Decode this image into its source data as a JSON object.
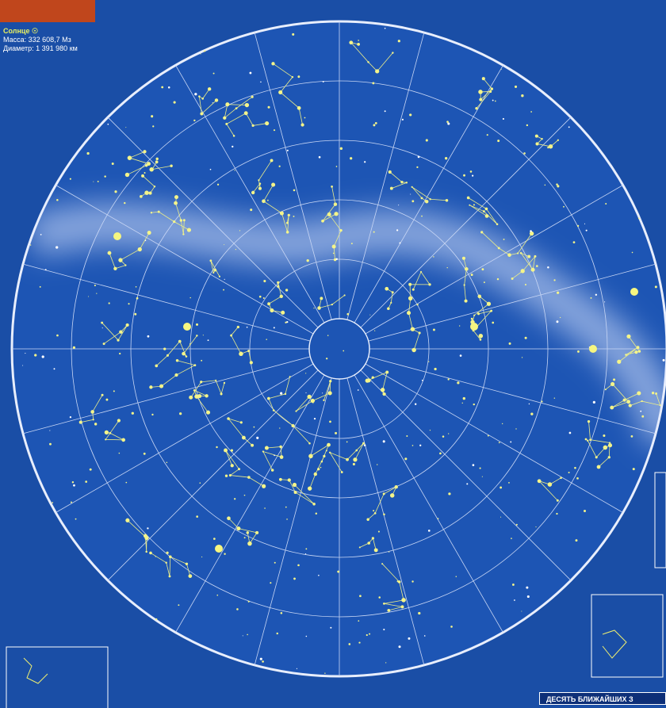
{
  "sun_info": {
    "name": "Солнце ☉",
    "mass": "Масса: 332 608,7 Мз",
    "diameter": "Диаметр: 1 391 980 км"
  },
  "footer": {
    "heading": "ДЕСЯТЬ БЛИЖАЙШИХ З"
  }
}
